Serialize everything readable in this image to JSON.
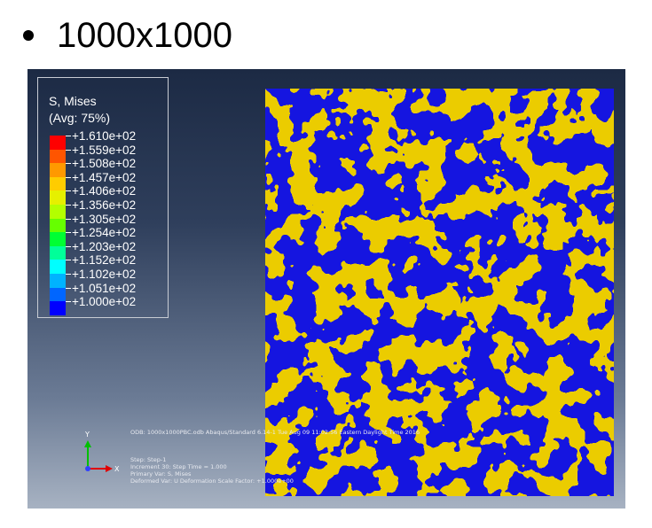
{
  "slide": {
    "title": "1000x1000"
  },
  "legend": {
    "variable": "S, Mises",
    "averaging": "(Avg: 75%)",
    "values": [
      "+1.610e+02",
      "+1.559e+02",
      "+1.508e+02",
      "+1.457e+02",
      "+1.406e+02",
      "+1.356e+02",
      "+1.305e+02",
      "+1.254e+02",
      "+1.203e+02",
      "+1.152e+02",
      "+1.102e+02",
      "+1.051e+02",
      "+1.000e+02"
    ],
    "colors": [
      "#ff0000",
      "#ff5500",
      "#ff9900",
      "#ffcc00",
      "#e6f000",
      "#b3ff00",
      "#66ff00",
      "#00ff33",
      "#00ff99",
      "#00ffff",
      "#00b3ff",
      "#0066ff",
      "#0000ff"
    ]
  },
  "contour": {
    "colors": {
      "high": "#d49a00",
      "low": "#1515e0"
    }
  },
  "triad": {
    "y_label": "Y",
    "x_label": "X"
  },
  "info": {
    "odb_line": "ODB: 1000x1000PBC.odb    Abaqus/Standard 6.14-1    Tue Aug 09 11:02:56 Eastern Daylight Time 2016",
    "step_line": "Step: Step-1",
    "increment_line": "Increment     30: Step Time =    1.000",
    "primary_line": "Primary Var: S, Mises",
    "deformed_line": "Deformed Var: U   Deformation Scale Factor: +1.000e+00"
  }
}
